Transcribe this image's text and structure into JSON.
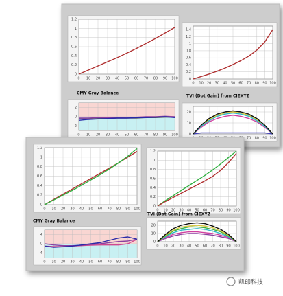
{
  "chart_data": [
    {
      "type": "line",
      "x": [
        0,
        10,
        20,
        30,
        40,
        50,
        60,
        70,
        80,
        90,
        100
      ],
      "xlim": [
        0,
        100
      ],
      "xticks": [
        0,
        10,
        20,
        30,
        40,
        50,
        60,
        70,
        80,
        90,
        100
      ],
      "ylim": [
        0,
        1.2
      ],
      "yticks": [
        0,
        0.2,
        0.4,
        0.6,
        0.8,
        1,
        1.2
      ],
      "grid": true,
      "series": [
        {
          "color": "#b03030",
          "values": [
            0,
            0.09,
            0.18,
            0.27,
            0.36,
            0.46,
            0.56,
            0.67,
            0.78,
            0.9,
            1.02
          ]
        }
      ]
    },
    {
      "type": "line",
      "x": [
        0,
        10,
        20,
        30,
        40,
        50,
        60,
        70,
        80,
        90,
        100
      ],
      "xlim": [
        0,
        100
      ],
      "xticks": [
        0,
        10,
        20,
        30,
        40,
        50,
        60,
        70,
        80,
        90,
        100
      ],
      "ylim": [
        0,
        1.5
      ],
      "yticks": [
        0,
        0.2,
        0.4,
        0.6,
        0.8,
        1,
        1.2,
        1.4
      ],
      "grid": true,
      "series": [
        {
          "color": "#b03030",
          "values": [
            0,
            0.07,
            0.14,
            0.22,
            0.31,
            0.41,
            0.52,
            0.65,
            0.82,
            1.05,
            1.4
          ]
        }
      ]
    },
    {
      "type": "line",
      "title": "CMY Gray Balance",
      "x": [
        0,
        10,
        20,
        30,
        40,
        50,
        60,
        70,
        80,
        90,
        100
      ],
      "xlim": [
        0,
        100
      ],
      "xticks": [
        0,
        10,
        20,
        30,
        40,
        50,
        60,
        70,
        80,
        90,
        100
      ],
      "ylim": [
        -3,
        3
      ],
      "yticks": [
        -2,
        0,
        2
      ],
      "grid": true,
      "series": [
        {
          "color": "#555566",
          "values": [
            -0.5,
            -0.5,
            -0.4,
            -0.4,
            -0.3,
            -0.3,
            -0.3,
            -0.2,
            -0.2,
            -0.1,
            -0.1
          ]
        },
        {
          "color": "#8a3fa0",
          "values": [
            -0.3,
            -0.3,
            -0.2,
            -0.2,
            -0.2,
            -0.1,
            -0.1,
            0,
            0,
            0.1,
            0
          ]
        },
        {
          "color": "#2a2aa8",
          "values": [
            -0.8,
            -0.6,
            -0.5,
            -0.4,
            -0.3,
            -0.3,
            -0.2,
            -0.2,
            -0.1,
            0,
            -0.2
          ]
        }
      ]
    },
    {
      "type": "line",
      "title": "TVI (Dot Gain) from CIEXYZ",
      "x": [
        0,
        10,
        20,
        30,
        40,
        50,
        60,
        70,
        80,
        90,
        100
      ],
      "xlim": [
        0,
        100
      ],
      "xticks": [
        0,
        10,
        20,
        30,
        40,
        50,
        60,
        70,
        80,
        90,
        100
      ],
      "ylim": [
        0,
        25
      ],
      "yticks": [
        0,
        10,
        20
      ],
      "grid": true,
      "series": [
        {
          "color": "#4040c0",
          "values": [
            0,
            1,
            1,
            1,
            1,
            1,
            1,
            1,
            1,
            1,
            0
          ]
        },
        {
          "color": "#d040a0",
          "values": [
            0,
            6,
            11,
            14,
            16,
            17,
            16,
            14,
            11,
            6,
            0
          ]
        },
        {
          "color": "#d8c840",
          "values": [
            0,
            7,
            13,
            17,
            19,
            20,
            19,
            17,
            13,
            8,
            0
          ]
        },
        {
          "color": "#30b8c8",
          "values": [
            0,
            7,
            12,
            16,
            18,
            19,
            18,
            16,
            12,
            7,
            0
          ]
        },
        {
          "color": "#111111",
          "values": [
            0,
            8,
            14,
            18,
            20,
            21,
            20,
            18,
            14,
            8,
            0
          ]
        }
      ]
    },
    {
      "type": "line",
      "x": [
        0,
        10,
        20,
        30,
        40,
        50,
        60,
        70,
        80,
        90,
        100
      ],
      "xlim": [
        0,
        100
      ],
      "xticks": [
        0,
        10,
        20,
        30,
        40,
        50,
        60,
        70,
        80,
        90,
        100
      ],
      "ylim": [
        0,
        1.2
      ],
      "yticks": [
        0,
        0.2,
        0.4,
        0.6,
        0.8,
        1,
        1.2
      ],
      "grid": true,
      "series": [
        {
          "color": "#b03030",
          "values": [
            0,
            0.11,
            0.22,
            0.33,
            0.44,
            0.55,
            0.66,
            0.77,
            0.88,
            1.0,
            1.12
          ]
        },
        {
          "color": "#30b040",
          "values": [
            0,
            0.1,
            0.2,
            0.3,
            0.41,
            0.52,
            0.63,
            0.75,
            0.88,
            1.02,
            1.18
          ]
        }
      ]
    },
    {
      "type": "line",
      "x": [
        0,
        10,
        20,
        30,
        40,
        50,
        60,
        70,
        80,
        90,
        100
      ],
      "xlim": [
        0,
        100
      ],
      "xticks": [
        0,
        10,
        20,
        30,
        40,
        50,
        60,
        70,
        80,
        90,
        100
      ],
      "ylim": [
        0,
        1.2
      ],
      "yticks": [
        0,
        0.2,
        0.4,
        0.6,
        0.8,
        1,
        1.2
      ],
      "grid": true,
      "series": [
        {
          "color": "#30b040",
          "values": [
            0,
            0.12,
            0.23,
            0.34,
            0.45,
            0.56,
            0.67,
            0.79,
            0.92,
            1.06,
            1.2
          ]
        },
        {
          "color": "#b03030",
          "values": [
            0,
            0.1,
            0.19,
            0.28,
            0.37,
            0.46,
            0.55,
            0.65,
            0.78,
            0.95,
            1.15
          ]
        }
      ]
    },
    {
      "type": "line",
      "title": "CMY Gray Balance",
      "x": [
        0,
        10,
        20,
        30,
        40,
        50,
        60,
        70,
        80,
        90,
        100
      ],
      "xlim": [
        0,
        100
      ],
      "xticks": [
        0,
        10,
        20,
        30,
        40,
        50,
        60,
        70,
        80,
        90,
        100
      ],
      "ylim": [
        -6,
        6
      ],
      "yticks": [
        -4,
        0,
        4
      ],
      "grid": true,
      "series": [
        {
          "color": "#d04890",
          "values": [
            -1,
            -1.2,
            -1.2,
            -1,
            -0.8,
            -0.6,
            -0.5,
            -0.5,
            -0.5,
            0,
            2
          ]
        },
        {
          "color": "#8a3fa0",
          "values": [
            0,
            -0.5,
            -0.8,
            -0.8,
            -0.6,
            -0.3,
            0,
            0.5,
            1,
            1.2,
            2
          ]
        },
        {
          "color": "#2a2aa8",
          "values": [
            -1,
            -1.5,
            -1.3,
            -1,
            -0.5,
            0,
            0.5,
            1.5,
            2.5,
            3,
            2
          ]
        }
      ]
    },
    {
      "type": "line",
      "title": "TVI (Dot Gain) from CIEXYZ",
      "x": [
        0,
        10,
        20,
        30,
        40,
        50,
        60,
        70,
        80,
        90,
        100
      ],
      "xlim": [
        0,
        100
      ],
      "xticks": [
        0,
        10,
        20,
        30,
        40,
        50,
        60,
        70,
        80,
        90,
        100
      ],
      "ylim": [
        0,
        25
      ],
      "yticks": [
        0,
        10,
        20
      ],
      "grid": true,
      "series": [
        {
          "color": "#8a3fa0",
          "values": [
            0,
            4,
            7,
            9,
            10,
            10,
            9,
            8,
            6,
            4,
            0
          ]
        },
        {
          "color": "#d040a0",
          "values": [
            0,
            5,
            9,
            11,
            12,
            12,
            11,
            10,
            8,
            5,
            0
          ]
        },
        {
          "color": "#30b8c8",
          "values": [
            0,
            6,
            11,
            14,
            15,
            16,
            15,
            13,
            10,
            6,
            0
          ]
        },
        {
          "color": "#40b040",
          "values": [
            0,
            7,
            13,
            16,
            18,
            18,
            17,
            15,
            12,
            7,
            0
          ]
        },
        {
          "color": "#d8c840",
          "values": [
            0,
            8,
            14,
            18,
            19,
            20,
            19,
            17,
            13,
            8,
            0
          ]
        },
        {
          "color": "#111111",
          "values": [
            0,
            9,
            16,
            20,
            22,
            23,
            22,
            19,
            15,
            9,
            0
          ]
        }
      ]
    }
  ],
  "watermark": "凯印科技"
}
